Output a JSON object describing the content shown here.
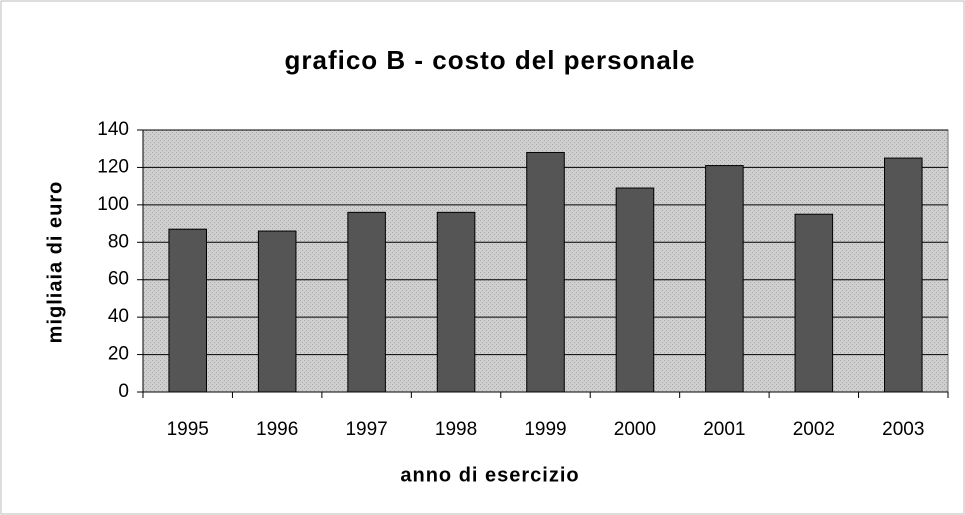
{
  "chart_data": {
    "type": "bar",
    "title": "grafico B - costo del personale",
    "x_label": "anno di esercizio",
    "y_label": "migliaia di euro",
    "categories": [
      "1995",
      "1996",
      "1997",
      "1998",
      "1999",
      "2000",
      "2001",
      "2002",
      "2003"
    ],
    "values": [
      87,
      86,
      96,
      96,
      128,
      109,
      121,
      95,
      125
    ],
    "color": "#555555",
    "ylim": [
      0,
      140
    ],
    "yticks": [
      0,
      20,
      40,
      60,
      80,
      100,
      120,
      140
    ],
    "grid": true
  }
}
